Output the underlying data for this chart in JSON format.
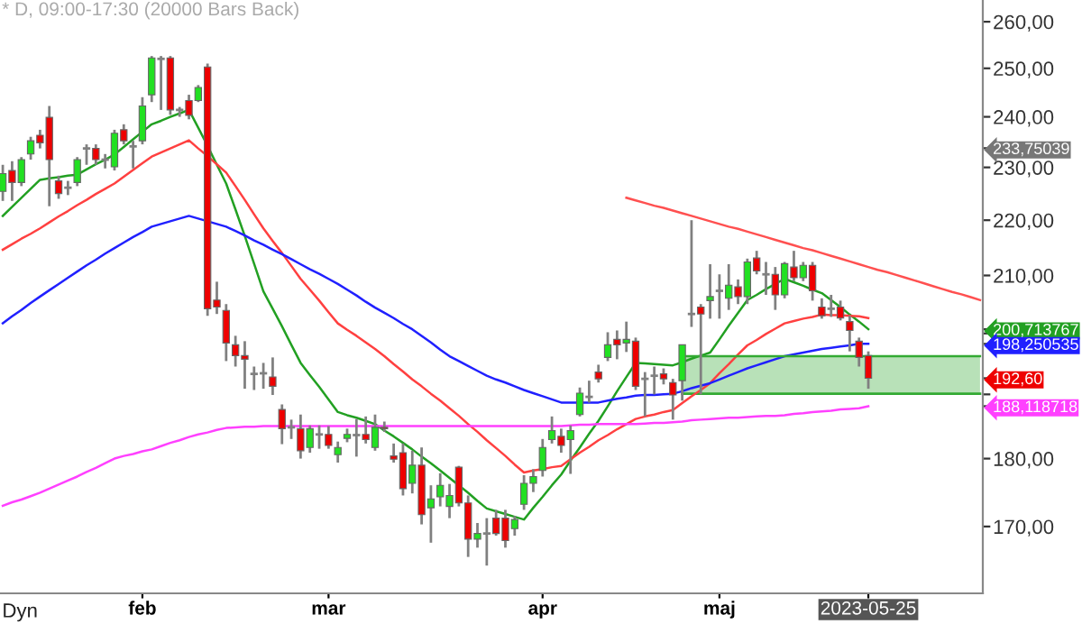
{
  "chart_data": {
    "type": "candlestick",
    "title": "* D, 09:00-17:30 (20000 Bars Back)",
    "categories": [
      null,
      null,
      null,
      null,
      null,
      null,
      null,
      null,
      null,
      null,
      null,
      null,
      null,
      null,
      null,
      "feb",
      null,
      null,
      null,
      null,
      null,
      null,
      null,
      null,
      null,
      null,
      null,
      null,
      null,
      null,
      null,
      null,
      null,
      null,
      null,
      "mar",
      null,
      null,
      null,
      null,
      null,
      null,
      null,
      null,
      null,
      null,
      null,
      null,
      null,
      null,
      null,
      null,
      null,
      null,
      null,
      null,
      null,
      null,
      "apr",
      null,
      null,
      null,
      null,
      null,
      null,
      null,
      null,
      null,
      null,
      null,
      null,
      null,
      null,
      null,
      null,
      null,
      null,
      "maj",
      null,
      null,
      null,
      null,
      null,
      null,
      null,
      null,
      null,
      null,
      null,
      null,
      null,
      null,
      null,
      "2023-05-25",
      null,
      null,
      null,
      null,
      null,
      null,
      null,
      null,
      null,
      null,
      null,
      null
    ],
    "ohlc": [
      [
        225.4,
        230.5,
        223.6,
        228.8
      ],
      [
        229.4,
        231.2,
        223.6,
        227.1
      ],
      [
        227.1,
        232.0,
        226.4,
        231.5
      ],
      [
        232.6,
        236.0,
        231.5,
        235.2
      ],
      [
        236.3,
        237.4,
        233.7,
        234.8
      ],
      [
        239.9,
        242.2,
        222.6,
        231.5
      ],
      [
        227.4,
        228.4,
        224.0,
        225.0
      ],
      [
        226.1,
        227.4,
        224.7,
        226.1
      ],
      [
        227.1,
        232.0,
        226.4,
        231.5
      ],
      [
        233.7,
        234.5,
        230.5,
        233.7
      ],
      [
        233.7,
        234.5,
        230.5,
        231.5
      ],
      [
        231.5,
        232.6,
        229.8,
        231.5
      ],
      [
        230.1,
        237.4,
        229.4,
        236.7
      ],
      [
        237.4,
        238.5,
        234.5,
        235.2
      ],
      [
        234.1,
        235.2,
        229.8,
        234.1
      ],
      [
        235.2,
        244.0,
        234.5,
        242.2
      ],
      [
        244.5,
        252.6,
        243.0,
        252.2
      ],
      [
        252.0,
        252.6,
        241.4,
        252.0
      ],
      [
        252.2,
        252.6,
        240.4,
        241.4
      ],
      [
        241.4,
        242.0,
        240.0,
        241.4
      ],
      [
        243.3,
        244.5,
        239.5,
        240.3
      ],
      [
        243.3,
        246.5,
        243.0,
        246.0
      ],
      [
        250.3,
        251.0,
        203.0,
        204.2
      ],
      [
        205.7,
        208.9,
        203.3,
        204.5
      ],
      [
        203.9,
        205.0,
        195.4,
        198.4
      ],
      [
        198.1,
        199.6,
        194.5,
        196.3
      ],
      [
        196.3,
        198.7,
        190.9,
        195.7
      ],
      [
        193.3,
        194.5,
        190.7,
        193.3
      ],
      [
        193.4,
        195.1,
        190.9,
        193.4
      ],
      [
        192.8,
        196.0,
        189.9,
        191.3
      ],
      [
        187.6,
        188.4,
        182.2,
        184.6
      ],
      [
        184.8,
        186.0,
        183.0,
        184.8
      ],
      [
        184.6,
        186.8,
        180.0,
        181.2
      ],
      [
        181.7,
        185.1,
        180.9,
        184.6
      ],
      [
        183.7,
        185.1,
        181.5,
        183.7
      ],
      [
        183.7,
        185.0,
        181.5,
        182.0
      ],
      [
        180.6,
        182.6,
        179.4,
        181.7
      ],
      [
        183.1,
        184.6,
        182.5,
        183.7
      ],
      [
        183.6,
        186.1,
        180.3,
        183.6
      ],
      [
        183.7,
        186.5,
        182.3,
        182.9
      ],
      [
        181.7,
        186.8,
        181.2,
        184.8
      ],
      [
        184.8,
        185.7,
        184.1,
        184.6
      ],
      [
        180.4,
        182.3,
        179.4,
        179.9
      ],
      [
        180.9,
        182.3,
        174.5,
        175.5
      ],
      [
        176.3,
        181.2,
        174.8,
        179.0
      ],
      [
        179.0,
        181.7,
        170.3,
        171.7
      ],
      [
        172.7,
        176.0,
        167.7,
        174.0
      ],
      [
        174.3,
        177.8,
        172.9,
        176.0
      ],
      [
        172.9,
        176.2,
        171.2,
        174.5
      ],
      [
        178.7,
        178.9,
        172.9,
        173.4
      ],
      [
        173.4,
        174.5,
        165.7,
        168.2
      ],
      [
        168.2,
        170.5,
        167.0,
        169.0
      ],
      [
        169.0,
        171.2,
        164.5,
        169.0
      ],
      [
        171.2,
        172.4,
        168.7,
        169.0
      ],
      [
        171.2,
        172.4,
        167.0,
        168.0
      ],
      [
        169.7,
        171.5,
        168.7,
        171.0
      ],
      [
        173.2,
        177.5,
        172.4,
        176.3
      ],
      [
        176.3,
        178.4,
        175.0,
        177.3
      ],
      [
        178.2,
        183.0,
        177.3,
        181.7
      ],
      [
        182.9,
        186.5,
        182.3,
        184.3
      ],
      [
        183.4,
        184.6,
        180.9,
        182.0
      ],
      [
        182.9,
        185.1,
        177.7,
        184.3
      ],
      [
        186.8,
        191.1,
        186.5,
        190.2
      ],
      [
        189.6,
        192.2,
        188.7,
        189.6
      ],
      [
        193.6,
        194.8,
        191.9,
        192.5
      ],
      [
        196.0,
        200.2,
        195.4,
        198.1
      ],
      [
        199.0,
        200.5,
        195.7,
        198.1
      ],
      [
        198.4,
        202.0,
        196.9,
        199.0
      ],
      [
        198.7,
        199.3,
        190.7,
        191.3
      ],
      [
        192.5,
        193.6,
        186.5,
        192.5
      ],
      [
        193.0,
        194.5,
        190.0,
        193.0
      ],
      [
        193.3,
        194.2,
        191.6,
        192.5
      ],
      [
        191.9,
        192.5,
        186.0,
        189.9
      ],
      [
        192.2,
        198.1,
        189.0,
        198.1
      ],
      [
        203.3,
        220.0,
        201.1,
        203.3
      ],
      [
        204.5,
        205.0,
        190.0,
        203.3
      ],
      [
        205.6,
        212.0,
        202.5,
        206.3
      ],
      [
        207.3,
        210.2,
        202.5,
        207.3
      ],
      [
        206.0,
        212.0,
        204.0,
        208.3
      ],
      [
        208.0,
        209.3,
        205.0,
        206.3
      ],
      [
        206.3,
        213.0,
        205.0,
        212.4
      ],
      [
        213.1,
        214.4,
        210.2,
        210.8
      ],
      [
        210.2,
        212.4,
        206.6,
        210.2
      ],
      [
        210.2,
        211.5,
        204.0,
        206.6
      ],
      [
        206.6,
        212.4,
        206.0,
        212.1
      ],
      [
        211.5,
        214.4,
        209.0,
        209.6
      ],
      [
        209.6,
        212.4,
        209.0,
        211.8
      ],
      [
        211.8,
        212.4,
        205.6,
        207.3
      ],
      [
        204.5,
        206.0,
        202.5,
        203.0
      ],
      [
        204.2,
        206.6,
        202.8,
        204.2
      ],
      [
        204.5,
        205.6,
        202.2,
        202.6
      ],
      [
        202.0,
        203.0,
        197.0,
        200.5
      ],
      [
        198.7,
        199.3,
        194.5,
        196.0
      ],
      [
        196.3,
        197.0,
        190.9,
        192.6
      ],
      null,
      null,
      null,
      null,
      null,
      null,
      null,
      null,
      null,
      null,
      null,
      null
    ],
    "colors": [
      "#22e022",
      "#ee0000",
      "#22e022",
      "#22e022",
      "#ee0000",
      "#ee0000",
      "#ee0000",
      "#808080",
      "#22e022",
      "#808080",
      "#ee0000",
      "#808080",
      "#22e022",
      "#ee0000",
      "#808080",
      "#22e022",
      "#22e022",
      "#808080",
      "#ee0000",
      "#808080",
      "#ee0000",
      "#22e022",
      "#ee0000",
      "#ee0000",
      "#ee0000",
      "#ee0000",
      "#ee0000",
      "#808080",
      "#808080",
      "#ee0000",
      "#ee0000",
      "#808080",
      "#ee0000",
      "#22e022",
      "#808080",
      "#ee0000",
      "#22e022",
      "#22e022",
      "#808080",
      "#ee0000",
      "#22e022",
      "#ee0000",
      "#ee0000",
      "#ee0000",
      "#22e022",
      "#ee0000",
      "#22e022",
      "#22e022",
      "#22e022",
      "#ee0000",
      "#ee0000",
      "#22e022",
      "#808080",
      "#ee0000",
      "#ee0000",
      "#22e022",
      "#22e022",
      "#22e022",
      "#22e022",
      "#22e022",
      "#ee0000",
      "#22e022",
      "#22e022",
      "#808080",
      "#ee0000",
      "#22e022",
      "#ee0000",
      "#22e022",
      "#ee0000",
      "#808080",
      "#808080",
      "#ee0000",
      "#ee0000",
      "#22e022",
      "#808080",
      "#ee0000",
      "#22e022",
      "#808080",
      "#22e022",
      "#ee0000",
      "#22e022",
      "#ee0000",
      "#808080",
      "#ee0000",
      "#22e022",
      "#ee0000",
      "#22e022",
      "#ee0000",
      "#ee0000",
      "#808080",
      "#ee0000",
      "#ee0000",
      "#ee0000",
      "#ee0000",
      null,
      null,
      null,
      null,
      null,
      null,
      null,
      null,
      null,
      null,
      null,
      null
    ],
    "series": [
      {
        "type": "line",
        "color": "#22a022",
        "values": [
          220.8,
          222.5,
          224.2,
          225.9,
          227.6,
          227.9,
          228.1,
          228.4,
          228.6,
          229.6,
          230.6,
          231.5,
          232.5,
          234.0,
          235.5,
          237.0,
          238.5,
          239.2,
          240.0,
          240.7,
          241.4,
          237.8,
          234.2,
          230.5,
          226.9,
          222.0,
          217.1,
          212.1,
          207.2,
          204.2,
          201.2,
          198.1,
          195.1,
          193.1,
          191.2,
          189.2,
          187.2,
          186.7,
          186.3,
          185.8,
          185.3,
          184.3,
          183.4,
          182.4,
          181.4,
          180.3,
          179.3,
          178.2,
          177.1,
          176.0,
          174.9,
          173.7,
          172.6,
          172.2,
          171.8,
          171.4,
          171.0,
          172.7,
          174.3,
          176.0,
          177.6,
          179.7,
          181.7,
          183.8,
          185.8,
          188.1,
          190.5,
          192.8,
          195.1,
          195.0,
          194.9,
          194.8,
          194.7,
          195.2,
          195.8,
          196.3,
          196.8,
          199.0,
          201.3,
          203.5,
          205.7,
          206.6,
          207.6,
          208.5,
          209.4,
          208.8,
          208.2,
          207.5,
          206.9,
          205.7,
          204.5,
          203.2,
          202.0,
          200.71,
          null,
          null,
          null,
          null,
          null,
          null,
          null,
          null,
          null,
          null,
          null,
          null
        ]
      },
      {
        "type": "line",
        "color": "#ff4040",
        "values": [
          214.6,
          215.6,
          216.6,
          217.5,
          218.5,
          219.6,
          220.7,
          221.7,
          222.8,
          223.8,
          224.9,
          225.9,
          226.9,
          228.2,
          229.5,
          230.8,
          232.1,
          232.9,
          233.7,
          234.5,
          235.3,
          233.7,
          232.2,
          230.6,
          229.0,
          226.4,
          223.8,
          221.1,
          218.5,
          216.2,
          214.0,
          211.7,
          209.4,
          207.5,
          205.6,
          203.6,
          201.7,
          200.6,
          199.6,
          198.5,
          197.4,
          196.2,
          194.9,
          193.7,
          192.4,
          191.3,
          190.1,
          189.0,
          187.8,
          186.6,
          185.3,
          184.1,
          182.8,
          181.6,
          180.4,
          179.1,
          177.9,
          178.2,
          178.4,
          178.7,
          178.9,
          179.9,
          180.9,
          181.8,
          182.8,
          183.6,
          184.5,
          185.3,
          186.1,
          186.5,
          186.8,
          187.2,
          187.5,
          188.6,
          189.7,
          190.7,
          191.8,
          193.4,
          194.9,
          196.5,
          198.0,
          198.9,
          199.9,
          200.8,
          201.7,
          202.1,
          202.5,
          202.8,
          203.2,
          203.1,
          203.1,
          203.0,
          202.9,
          202.6,
          null,
          null,
          null,
          null,
          null,
          null,
          null,
          null,
          null,
          null,
          null,
          null
        ]
      },
      {
        "type": "line",
        "color": "#2020ff",
        "values": [
          201.7,
          202.9,
          204.0,
          205.2,
          206.3,
          207.4,
          208.5,
          209.6,
          210.7,
          211.8,
          212.8,
          213.9,
          214.9,
          215.9,
          216.9,
          217.8,
          218.8,
          219.3,
          219.8,
          220.3,
          220.8,
          220.3,
          219.8,
          219.3,
          218.8,
          218.0,
          217.2,
          216.3,
          215.5,
          214.6,
          213.8,
          212.9,
          212.0,
          211.1,
          210.3,
          209.4,
          208.5,
          207.5,
          206.5,
          205.4,
          204.4,
          203.5,
          202.6,
          201.6,
          200.7,
          199.6,
          198.5,
          197.3,
          196.2,
          195.4,
          194.6,
          193.8,
          193.0,
          192.4,
          191.9,
          191.3,
          190.7,
          190.2,
          189.7,
          189.2,
          188.7,
          188.7,
          188.7,
          188.7,
          188.7,
          189.0,
          189.3,
          189.5,
          189.8,
          189.9,
          189.9,
          190.0,
          190.1,
          190.5,
          191.0,
          191.4,
          191.8,
          192.4,
          193.0,
          193.6,
          194.2,
          194.7,
          195.2,
          195.7,
          196.2,
          196.5,
          196.8,
          197.1,
          197.4,
          197.6,
          197.8,
          198.0,
          198.25,
          198.25,
          null,
          null,
          null,
          null,
          null,
          null,
          null,
          null,
          null,
          null,
          null,
          null
        ]
      },
      {
        "type": "line",
        "color": "#ff40ff",
        "values": [
          173.0,
          173.5,
          173.9,
          174.4,
          174.9,
          175.5,
          176.1,
          176.7,
          177.3,
          178.0,
          178.6,
          179.3,
          180.0,
          180.4,
          180.7,
          181.1,
          181.4,
          181.9,
          182.4,
          182.8,
          183.3,
          183.7,
          184.0,
          184.4,
          184.7,
          184.8,
          184.9,
          184.9,
          185.0,
          185.0,
          185.0,
          185.0,
          185.0,
          185.0,
          185.0,
          185.0,
          185.0,
          185.0,
          185.0,
          185.0,
          185.0,
          185.0,
          185.0,
          185.0,
          185.0,
          185.0,
          185.0,
          185.0,
          185.0,
          185.0,
          185.0,
          185.0,
          185.0,
          185.0,
          185.0,
          185.0,
          185.0,
          185.0,
          185.0,
          185.0,
          185.0,
          185.1,
          185.2,
          185.2,
          185.3,
          185.3,
          185.3,
          185.3,
          185.3,
          185.4,
          185.5,
          185.5,
          185.6,
          185.7,
          185.9,
          186.0,
          186.1,
          186.2,
          186.3,
          186.3,
          186.4,
          186.5,
          186.6,
          186.6,
          186.7,
          186.9,
          187.0,
          187.2,
          187.3,
          187.4,
          187.6,
          187.7,
          187.8,
          188.12,
          null,
          null,
          null,
          null,
          null,
          null,
          null,
          null,
          null,
          null,
          null,
          null
        ]
      },
      {
        "type": "line",
        "color": "#ff5050",
        "values": [
          null,
          null,
          null,
          null,
          null,
          null,
          null,
          null,
          null,
          null,
          null,
          null,
          null,
          null,
          null,
          null,
          null,
          null,
          null,
          null,
          null,
          null,
          null,
          null,
          null,
          null,
          null,
          null,
          null,
          null,
          null,
          null,
          null,
          null,
          null,
          null,
          null,
          null,
          null,
          null,
          null,
          null,
          null,
          null,
          null,
          null,
          null,
          null,
          null,
          null,
          null,
          null,
          null,
          null,
          null,
          null,
          null,
          null,
          null,
          null,
          null,
          null,
          null,
          null,
          null,
          null,
          null,
          224.2,
          223.7,
          223.2,
          222.7,
          222.3,
          221.8,
          221.3,
          220.8,
          220.3,
          219.8,
          219.3,
          218.8,
          218.4,
          217.9,
          217.4,
          216.9,
          216.4,
          215.9,
          215.4,
          214.9,
          214.5,
          214.0,
          213.5,
          213.0,
          212.5,
          212.0,
          211.5,
          211.0,
          210.6,
          210.1,
          209.6,
          209.1,
          208.6,
          208.1,
          207.6,
          207.1,
          206.7,
          206.2,
          205.7
        ]
      },
      {
        "type": "line",
        "color": "#33aa33",
        "values": [
          null,
          null,
          null,
          null,
          null,
          null,
          null,
          null,
          null,
          null,
          null,
          null,
          null,
          null,
          null,
          null,
          null,
          null,
          null,
          null,
          null,
          null,
          null,
          null,
          null,
          null,
          null,
          null,
          null,
          null,
          null,
          null,
          null,
          null,
          null,
          null,
          null,
          null,
          null,
          null,
          null,
          null,
          null,
          null,
          null,
          null,
          null,
          null,
          null,
          null,
          null,
          null,
          null,
          null,
          null,
          null,
          null,
          null,
          null,
          null,
          null,
          null,
          null,
          null,
          null,
          null,
          null,
          null,
          null,
          null,
          null,
          null,
          null,
          190.1,
          190.1,
          190.1,
          190.1,
          190.1,
          190.1,
          190.1,
          190.1,
          190.1,
          190.1,
          190.1,
          190.1,
          190.1,
          190.1,
          190.1,
          190.1,
          190.1,
          190.1,
          190.1,
          190.1,
          190.1,
          190.1,
          190.1,
          190.1,
          190.1,
          190.1,
          190.1,
          190.1,
          190.1,
          190.1,
          190.1,
          190.1,
          190.1
        ],
        "upper": [
          null,
          null,
          null,
          null,
          null,
          null,
          null,
          null,
          null,
          null,
          null,
          null,
          null,
          null,
          null,
          null,
          null,
          null,
          null,
          null,
          null,
          null,
          null,
          null,
          null,
          null,
          null,
          null,
          null,
          null,
          null,
          null,
          null,
          null,
          null,
          null,
          null,
          null,
          null,
          null,
          null,
          null,
          null,
          null,
          null,
          null,
          null,
          null,
          null,
          null,
          null,
          null,
          null,
          null,
          null,
          null,
          null,
          null,
          null,
          null,
          null,
          null,
          null,
          null,
          null,
          null,
          null,
          null,
          null,
          null,
          null,
          null,
          null,
          196.2,
          196.2,
          196.2,
          196.2,
          196.2,
          196.2,
          196.2,
          196.2,
          196.2,
          196.2,
          196.2,
          196.2,
          196.2,
          196.2,
          196.2,
          196.2,
          196.2,
          196.2,
          196.2,
          196.2,
          196.2,
          196.2,
          196.2,
          196.2,
          196.2,
          196.2,
          196.2,
          196.2,
          196.2,
          196.2,
          196.2,
          196.2,
          196.2
        ],
        "lower": [
          null,
          null,
          null,
          null,
          null,
          null,
          null,
          null,
          null,
          null,
          null,
          null,
          null,
          null,
          null,
          null,
          null,
          null,
          null,
          null,
          null,
          null,
          null,
          null,
          null,
          null,
          null,
          null,
          null,
          null,
          null,
          null,
          null,
          null,
          null,
          null,
          null,
          null,
          null,
          null,
          null,
          null,
          null,
          null,
          null,
          null,
          null,
          null,
          null,
          null,
          null,
          null,
          null,
          null,
          null,
          null,
          null,
          null,
          null,
          null,
          null,
          null,
          null,
          null,
          null,
          null,
          null,
          null,
          null,
          null,
          null,
          null,
          null,
          190.1,
          190.1,
          190.1,
          190.1,
          190.1,
          190.1,
          190.1,
          190.1,
          190.1,
          190.1,
          190.1,
          190.1,
          190.1,
          190.1,
          190.1,
          190.1,
          190.1,
          190.1,
          190.1,
          190.1,
          190.1,
          190.1,
          190.1,
          190.1,
          190.1,
          190.1,
          190.1,
          190.1,
          190.1,
          190.1,
          190.1,
          190.1,
          190.1
        ]
      },
      {
        "type": "line",
        "color": "#33aa33",
        "values": [
          null,
          null,
          null,
          null,
          null,
          null,
          null,
          null,
          null,
          null,
          null,
          null,
          null,
          null,
          null,
          null,
          null,
          null,
          null,
          null,
          null,
          null,
          null,
          null,
          null,
          null,
          null,
          null,
          null,
          null,
          null,
          null,
          null,
          null,
          null,
          null,
          null,
          null,
          null,
          null,
          null,
          null,
          null,
          null,
          null,
          null,
          null,
          null,
          null,
          null,
          null,
          null,
          null,
          null,
          null,
          null,
          null,
          null,
          null,
          null,
          null,
          null,
          null,
          null,
          null,
          null,
          null,
          null,
          null,
          null,
          null,
          null,
          null,
          196.2,
          196.2,
          196.2,
          196.2,
          196.2,
          196.2,
          196.2,
          196.2,
          196.2,
          196.2,
          196.2,
          196.2,
          196.2,
          196.2,
          196.2,
          196.2,
          196.2,
          196.2,
          196.2,
          196.2,
          196.2,
          196.2,
          196.2,
          196.2,
          196.2,
          196.2,
          196.2,
          196.2,
          196.2,
          196.2,
          196.2,
          196.2,
          196.2
        ]
      }
    ],
    "annotations": [
      "Dyn"
    ],
    "log": true,
    "ylim": [
      160.7,
      264.8
    ],
    "yticks": [
      {
        "value": 170,
        "label": "170,00"
      },
      {
        "value": 180,
        "label": "180,00"
      },
      {
        "value": 190,
        "label": null
      },
      {
        "value": 200,
        "label": null
      },
      {
        "value": 210,
        "label": "210,00"
      },
      {
        "value": 220,
        "label": "220,00"
      },
      {
        "value": 230,
        "label": "230,00"
      },
      {
        "value": 240,
        "label": "240,00"
      },
      {
        "value": 250,
        "label": "250,00"
      },
      {
        "value": 260,
        "label": "260,00"
      },
      {
        "value": 233.75039,
        "label": "233,75039"
      },
      {
        "value": 200.713767,
        "label": "200,713767"
      },
      {
        "value": 198.250535,
        "label": "198,250535"
      },
      {
        "value": 192.6,
        "label": "192,60"
      },
      {
        "value": 188.118718,
        "label": "188,118718"
      }
    ],
    "grid": false,
    "legend": false
  }
}
